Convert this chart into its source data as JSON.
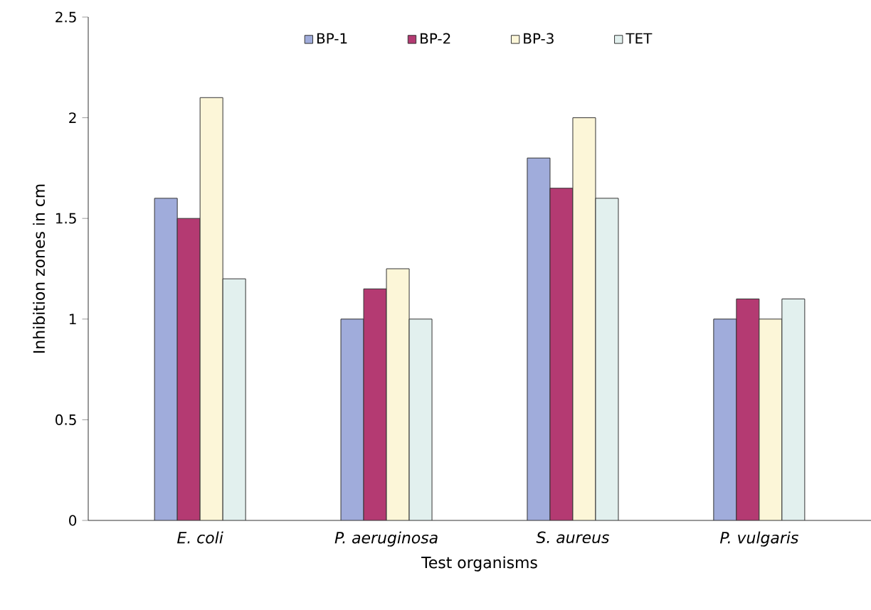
{
  "chart_data": {
    "type": "bar",
    "xlabel": "Test organisms",
    "ylabel": "Inhibition zones in cm",
    "categories": [
      "E. coli",
      "P. aeruginosa",
      "S. aureus",
      "P. vulgaris"
    ],
    "series": [
      {
        "name": "BP-1",
        "color": "#a0acdb",
        "values": [
          1.6,
          1.0,
          1.8,
          1.0
        ]
      },
      {
        "name": "BP-2",
        "color": "#b43a72",
        "values": [
          1.5,
          1.15,
          1.65,
          1.1
        ]
      },
      {
        "name": "BP-3",
        "color": "#fcf6d8",
        "values": [
          2.1,
          1.25,
          2.0,
          1.0
        ]
      },
      {
        "name": "TET",
        "color": "#e2f0ee",
        "values": [
          1.2,
          1.0,
          1.6,
          1.1
        ]
      }
    ],
    "ylim": [
      0,
      2.5
    ],
    "yticks": [
      0,
      0.5,
      1,
      1.5,
      2,
      2.5
    ],
    "grid": false,
    "legend": "top"
  }
}
